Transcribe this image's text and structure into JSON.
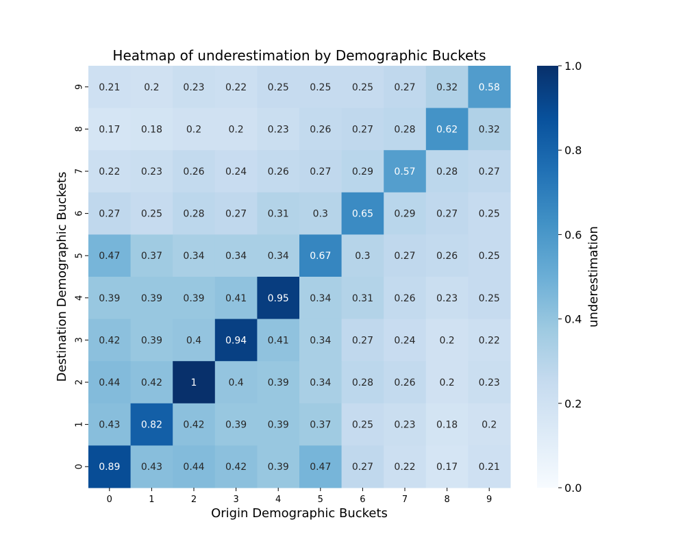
{
  "chart_data": {
    "type": "heatmap",
    "title": "Heatmap of underestimation by Demographic Buckets",
    "xlabel": "Origin Demographic Buckets",
    "ylabel": "Destination Demographic Buckets",
    "x_categories": [
      "0",
      "1",
      "2",
      "3",
      "4",
      "5",
      "6",
      "7",
      "8",
      "9"
    ],
    "y_categories": [
      "9",
      "8",
      "7",
      "6",
      "5",
      "4",
      "3",
      "2",
      "1",
      "0"
    ],
    "values": [
      [
        0.21,
        0.2,
        0.23,
        0.22,
        0.25,
        0.25,
        0.25,
        0.27,
        0.32,
        0.58
      ],
      [
        0.17,
        0.18,
        0.2,
        0.2,
        0.23,
        0.26,
        0.27,
        0.28,
        0.62,
        0.32
      ],
      [
        0.22,
        0.23,
        0.26,
        0.24,
        0.26,
        0.27,
        0.29,
        0.57,
        0.28,
        0.27
      ],
      [
        0.27,
        0.25,
        0.28,
        0.27,
        0.31,
        0.3,
        0.65,
        0.29,
        0.27,
        0.25
      ],
      [
        0.47,
        0.37,
        0.34,
        0.34,
        0.34,
        0.67,
        0.3,
        0.27,
        0.26,
        0.25
      ],
      [
        0.39,
        0.39,
        0.39,
        0.41,
        0.95,
        0.34,
        0.31,
        0.26,
        0.23,
        0.25
      ],
      [
        0.42,
        0.39,
        0.4,
        0.94,
        0.41,
        0.34,
        0.27,
        0.24,
        0.2,
        0.22
      ],
      [
        0.44,
        0.42,
        1,
        0.4,
        0.39,
        0.34,
        0.28,
        0.26,
        0.2,
        0.23
      ],
      [
        0.43,
        0.82,
        0.42,
        0.39,
        0.39,
        0.37,
        0.25,
        0.23,
        0.18,
        0.2
      ],
      [
        0.89,
        0.43,
        0.44,
        0.42,
        0.39,
        0.47,
        0.27,
        0.22,
        0.17,
        0.21
      ]
    ],
    "colorbar": {
      "label": "underestimation",
      "range": [
        0.0,
        1.0
      ],
      "ticks": [
        "0.0",
        "0.2",
        "0.4",
        "0.6",
        "0.8",
        "1.0"
      ],
      "colormap": "Blues"
    }
  }
}
